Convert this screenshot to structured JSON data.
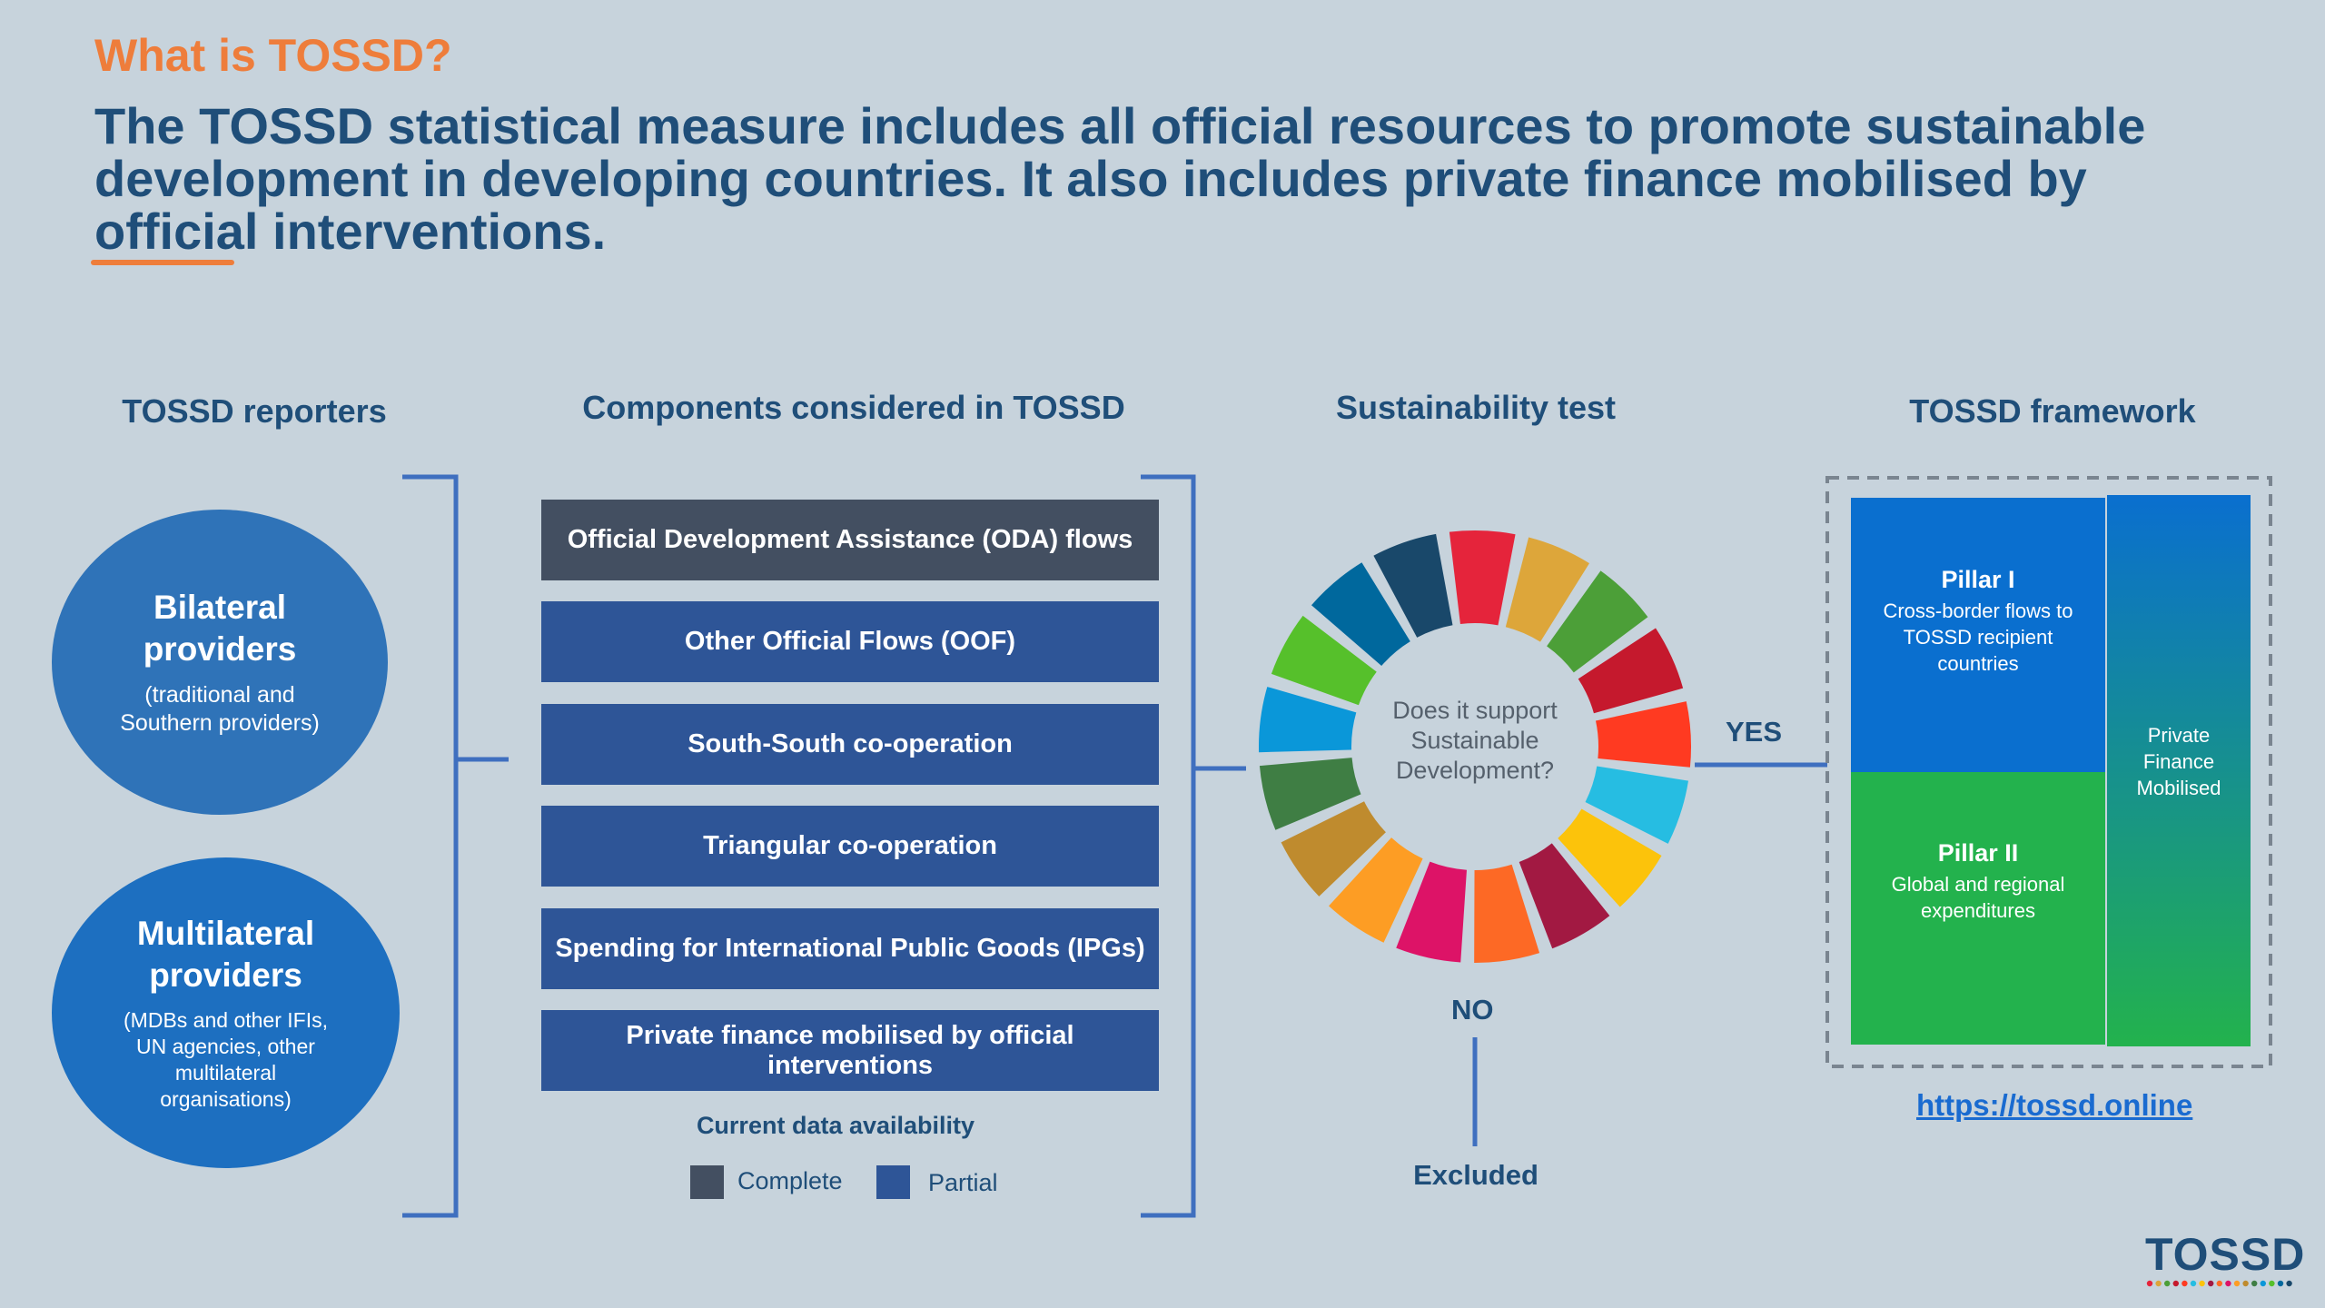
{
  "kicker": "What is TOSSD?",
  "headline": "The TOSSD statistical measure includes all official resources to promote sustainable development in developing countries. It also includes private finance mobilised by official interventions.",
  "columns": {
    "reporters": "TOSSD reporters",
    "components": "Components considered in TOSSD",
    "test": "Sustainability test",
    "framework": "TOSSD framework"
  },
  "reporters": [
    {
      "title": "Bilateral providers",
      "subtitle": "(traditional and Southern providers)",
      "color": "#2f73b8"
    },
    {
      "title": "Multilateral providers",
      "subtitle": "(MDBs and other IFIs, UN agencies, other multilateral organisations)",
      "color": "#1d6fc0"
    }
  ],
  "components": [
    {
      "label": "Official Development Assistance (ODA) flows",
      "availability": "Complete"
    },
    {
      "label": "Other Official Flows (OOF)",
      "availability": "Partial"
    },
    {
      "label": "South-South co-operation",
      "availability": "Partial"
    },
    {
      "label": "Triangular co-operation",
      "availability": "Partial"
    },
    {
      "label": "Spending for International Public Goods (IPGs)",
      "availability": "Partial"
    },
    {
      "label": "Private finance mobilised by official interventions",
      "availability": "Partial"
    }
  ],
  "legend": {
    "title": "Current data availability",
    "complete": "Complete",
    "partial": "Partial",
    "complete_color": "#434f61",
    "partial_color": "#2e5597"
  },
  "test": {
    "question": "Does it support Sustainable Development?",
    "yes": "YES",
    "no": "NO",
    "excluded": "Excluded",
    "sdg_colors": [
      "#e5243b",
      "#dda63a",
      "#4c9f38",
      "#c5192d",
      "#ff3a21",
      "#26bde2",
      "#fcc30b",
      "#a21942",
      "#fd6925",
      "#dd1367",
      "#fd9d24",
      "#bf8b2e",
      "#3f7e44",
      "#0a97d9",
      "#56c02b",
      "#00689d",
      "#19486a"
    ]
  },
  "framework": {
    "pillar1_title": "Pillar I",
    "pillar1_desc": "Cross-border flows to TOSSD recipient countries",
    "pillar2_title": "Pillar II",
    "pillar2_desc": "Global and regional expenditures",
    "private": "Private Finance Mobilised",
    "link": "https://tossd.online"
  },
  "logo": "TOSSD",
  "colors": {
    "background": "#c7d3dc",
    "accent": "#ee7d3b",
    "text": "#1f4e79",
    "line": "#3f6fbf",
    "pillar1": "#0a6fcf",
    "pillar2": "#23b24d"
  }
}
